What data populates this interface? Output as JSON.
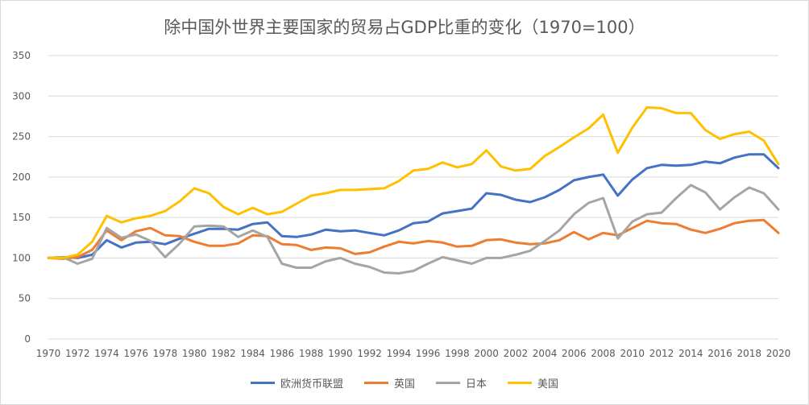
{
  "chart_data": {
    "type": "line",
    "title": "除中国外世界主要国家的贸易占GDP比重的变化（1970=100）",
    "xlabel": "",
    "ylabel": "",
    "ylim": [
      0,
      350
    ],
    "yticks": [
      0,
      50,
      100,
      150,
      200,
      250,
      300,
      350
    ],
    "grid": true,
    "legend_position": "bottom",
    "x": [
      1970,
      1971,
      1972,
      1973,
      1974,
      1975,
      1976,
      1977,
      1978,
      1979,
      1980,
      1981,
      1982,
      1983,
      1984,
      1985,
      1986,
      1987,
      1988,
      1989,
      1990,
      1991,
      1992,
      1993,
      1994,
      1995,
      1996,
      1997,
      1998,
      1999,
      2000,
      2001,
      2002,
      2003,
      2004,
      2005,
      2006,
      2007,
      2008,
      2009,
      2010,
      2011,
      2012,
      2013,
      2014,
      2015,
      2016,
      2017,
      2018,
      2019,
      2020
    ],
    "xtick_labels": [
      "1970",
      "1972",
      "1974",
      "1976",
      "1978",
      "1980",
      "1982",
      "1984",
      "1986",
      "1988",
      "1990",
      "1992",
      "1994",
      "1996",
      "1998",
      "2000",
      "2002",
      "2004",
      "2006",
      "2008",
      "2010",
      "2012",
      "2014",
      "2016",
      "2018",
      "2020"
    ],
    "series": [
      {
        "name": "欧洲货币联盟",
        "color": "#4472c4",
        "values": [
          100,
          101,
          100,
          104,
          122,
          113,
          119,
          120,
          117,
          124,
          130,
          136,
          136,
          135,
          142,
          144,
          127,
          126,
          129,
          135,
          133,
          134,
          131,
          128,
          134,
          143,
          145,
          155,
          158,
          161,
          180,
          178,
          172,
          169,
          175,
          184,
          196,
          200,
          203,
          177,
          197,
          211,
          215,
          214,
          215,
          219,
          217,
          224,
          228,
          228,
          211
        ]
      },
      {
        "name": "英国",
        "color": "#ed7d31",
        "values": [
          100,
          99,
          101,
          110,
          134,
          122,
          133,
          137,
          128,
          127,
          120,
          115,
          115,
          118,
          128,
          127,
          117,
          116,
          110,
          113,
          112,
          105,
          107,
          114,
          120,
          118,
          121,
          119,
          114,
          115,
          122,
          123,
          119,
          117,
          118,
          122,
          132,
          123,
          131,
          128,
          137,
          146,
          143,
          142,
          135,
          131,
          136,
          143,
          146,
          147,
          131
        ]
      },
      {
        "name": "日本",
        "color": "#a5a5a5",
        "values": [
          100,
          101,
          93,
          99,
          137,
          125,
          129,
          121,
          101,
          118,
          139,
          140,
          139,
          126,
          134,
          126,
          93,
          88,
          88,
          96,
          100,
          93,
          89,
          82,
          81,
          84,
          93,
          101,
          97,
          93,
          100,
          100,
          104,
          109,
          121,
          134,
          154,
          168,
          174,
          124,
          145,
          154,
          156,
          174,
          190,
          181,
          160,
          175,
          187,
          180,
          160
        ]
      },
      {
        "name": "美国",
        "color": "#ffc000",
        "values": [
          100,
          100,
          104,
          120,
          152,
          144,
          149,
          152,
          158,
          170,
          186,
          180,
          163,
          154,
          162,
          154,
          157,
          167,
          177,
          180,
          184,
          184,
          185,
          186,
          195,
          208,
          210,
          218,
          212,
          216,
          233,
          213,
          208,
          210,
          226,
          237,
          249,
          260,
          277,
          230,
          261,
          286,
          285,
          279,
          279,
          258,
          247,
          253,
          256,
          245,
          216
        ]
      }
    ]
  }
}
